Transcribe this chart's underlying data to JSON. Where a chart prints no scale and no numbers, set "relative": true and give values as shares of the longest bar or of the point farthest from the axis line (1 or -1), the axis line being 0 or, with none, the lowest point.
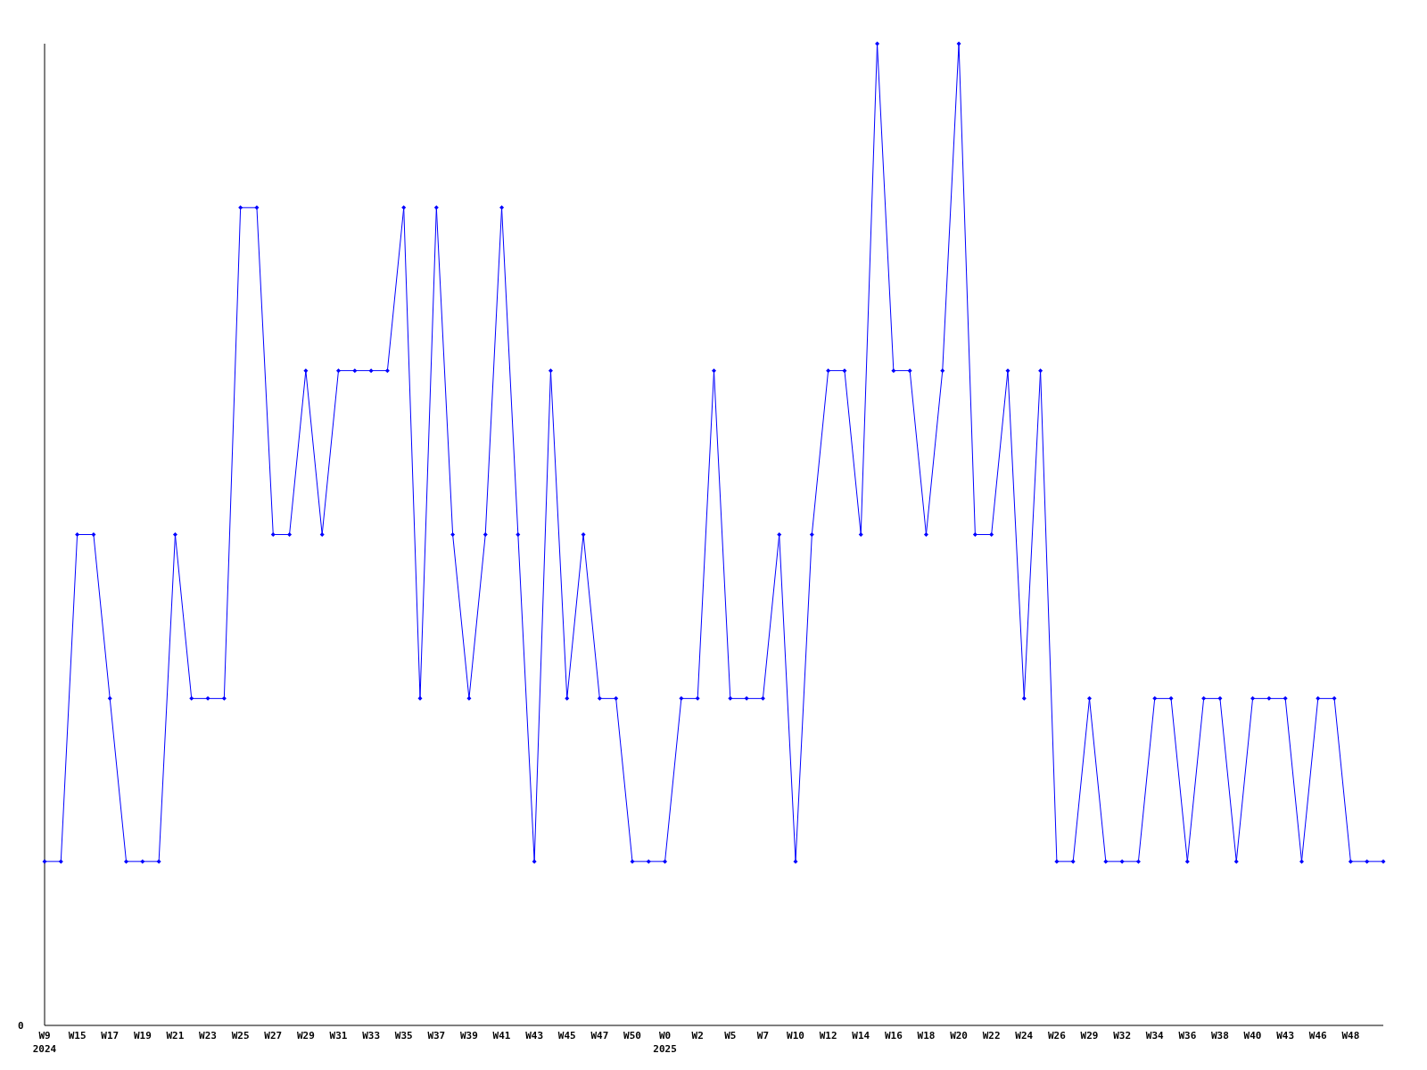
{
  "chart_data": {
    "type": "line",
    "relative": true,
    "marker": "diamond",
    "grid": false,
    "annotations": [
      "0"
    ],
    "categories": [
      "W9\n2024",
      null,
      "W15",
      null,
      "W17",
      null,
      "W19",
      null,
      "W21",
      null,
      "W23",
      null,
      "W25",
      null,
      "W27",
      null,
      "W29",
      null,
      "W31",
      null,
      "W33",
      null,
      "W35",
      null,
      "W37",
      null,
      "W39",
      null,
      "W41",
      null,
      "W43",
      null,
      "W45",
      null,
      "W47",
      null,
      "W50",
      null,
      "W0\n2025",
      null,
      "W2",
      null,
      "W5",
      null,
      "W7",
      null,
      "W10",
      null,
      "W12",
      null,
      "W14",
      null,
      "W16",
      null,
      "W18",
      null,
      "W20",
      null,
      "W22",
      null,
      "W24",
      null,
      "W26",
      null,
      "W29",
      null,
      "W32",
      null,
      "W34",
      null,
      "W36",
      null,
      "W38",
      null,
      "W40",
      null,
      "W43",
      null,
      "W46",
      null,
      "W48",
      null,
      null
    ],
    "series": [
      {
        "color": "#0000ff",
        "values": [
          0.167,
          0.167,
          0.5,
          0.5,
          0.333,
          0.167,
          0.167,
          0.167,
          0.5,
          0.333,
          0.333,
          0.333,
          0.833,
          0.833,
          0.5,
          0.5,
          0.667,
          0.5,
          0.667,
          0.667,
          0.667,
          0.667,
          0.833,
          0.333,
          0.833,
          0.5,
          0.333,
          0.5,
          0.833,
          0.5,
          0.167,
          0.667,
          0.333,
          0.5,
          0.333,
          0.333,
          0.167,
          0.167,
          0.167,
          0.333,
          0.333,
          0.667,
          0.333,
          0.333,
          0.333,
          0.5,
          0.167,
          0.5,
          0.667,
          0.667,
          0.5,
          1,
          0.667,
          0.667,
          0.5,
          0.667,
          1,
          0.5,
          0.5,
          0.667,
          0.333,
          0.667,
          0.167,
          0.167,
          0.333,
          0.167,
          0.167,
          0.167,
          0.333,
          0.333,
          0.167,
          0.333,
          0.333,
          0.167,
          0.333,
          0.333,
          0.333,
          0.167,
          0.333,
          0.333,
          0.167,
          0.167,
          0.167
        ]
      }
    ]
  }
}
